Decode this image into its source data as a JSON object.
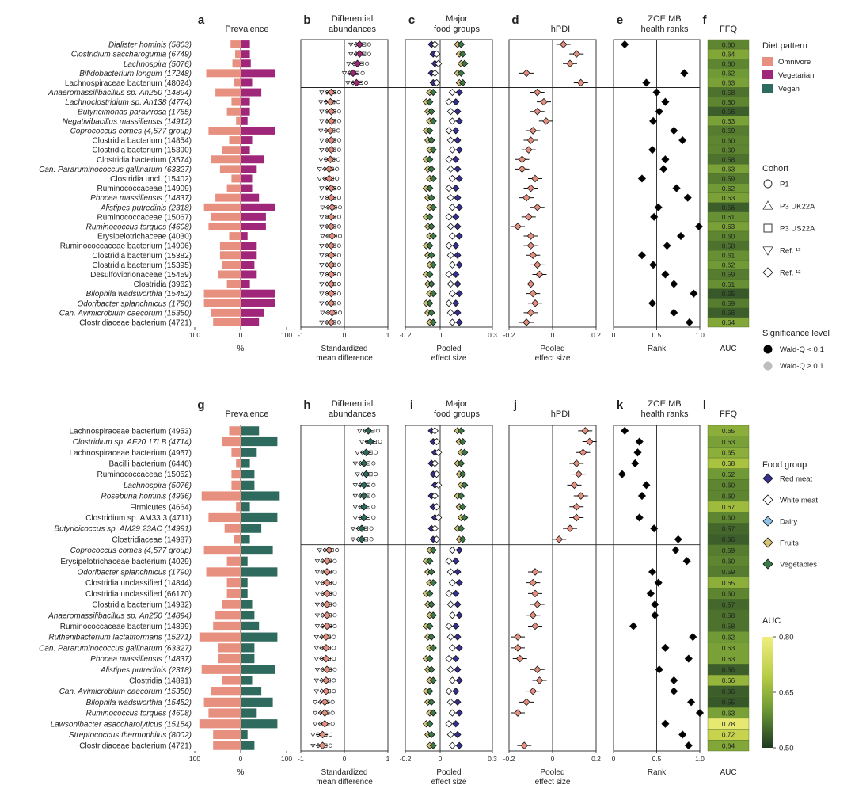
{
  "titles": {
    "a": "Prevalence",
    "b1": "Differential",
    "b2": "abundances",
    "c1": "Major",
    "c2": "food groups",
    "d": "hPDI",
    "e1": "ZOE MB",
    "e2": "health ranks",
    "f": "FFQ"
  },
  "panel_letters": {
    "top": [
      "a",
      "b",
      "c",
      "d",
      "e",
      "f"
    ],
    "bottom": [
      "g",
      "h",
      "i",
      "j",
      "k",
      "l"
    ]
  },
  "xlabels": {
    "prev": "%",
    "smd1": "Standardized",
    "smd2": "mean difference",
    "pes1": "Pooled",
    "pes2": "effect size",
    "rank": "Rank",
    "auc": "AUC"
  },
  "ticks": {
    "prev": [
      "100",
      "0",
      "100"
    ],
    "smd": [
      "-1",
      "0",
      "1"
    ],
    "fg": [
      "-0.2",
      "0",
      "0.3"
    ],
    "hpdi": [
      "-0.2",
      "0",
      "0.2"
    ],
    "rank": [
      "0",
      "0.5",
      "1.0"
    ]
  },
  "colors": {
    "omnivore": "#e8907f",
    "vegetarian": "#a0267a",
    "vegan": "#2e6b5e",
    "red_meat": "#35308e",
    "white_meat": "#ffffff",
    "dairy": "#8ec3e8",
    "fruits": "#d6c373",
    "vegetables": "#3a7a4a"
  },
  "legends": {
    "diet": {
      "title": "Diet pattern",
      "items": [
        "Omnivore",
        "Vegetarian",
        "Vegan"
      ]
    },
    "cohort": {
      "title": "Cohort",
      "items": [
        "P1",
        "P3 UK22A",
        "P3 US22A",
        "Ref. ¹³",
        "Ref. ¹²"
      ]
    },
    "sig": {
      "title": "Significance level",
      "items": [
        "Wald-Q < 0.1",
        "Wald-Q ≥ 0.1"
      ]
    },
    "food": {
      "title": "Food group",
      "items": [
        "Red meat",
        "White meat",
        "Dairy",
        "Fruits",
        "Vegetables"
      ]
    },
    "auc": {
      "title": "AUC",
      "ticks": [
        "0.80",
        "0.65",
        "0.50"
      ]
    }
  },
  "chart_data": [
    {
      "type": "bar",
      "panel": "top",
      "groups": [
        "Omnivore",
        "Vegetarian"
      ],
      "xlim": [
        -100,
        100
      ],
      "taxa": [
        {
          "label": "Dialister hominis (5803)",
          "it": true,
          "sep": false,
          "prev": [
            22,
            20
          ],
          "smd": 0.35,
          "hpdi": 0.05,
          "rank": 0.13,
          "auc": "0.60"
        },
        {
          "label": "Clostridium saccharogumia (6749)",
          "it": true,
          "sep": false,
          "prev": [
            12,
            20
          ],
          "smd": 0.35,
          "hpdi": 0.11,
          "rank": null,
          "auc": "0.64"
        },
        {
          "label": "Lachnospira (5076)",
          "it": true,
          "sep": false,
          "prev": [
            18,
            22
          ],
          "smd": 0.3,
          "hpdi": 0.08,
          "rank": null,
          "auc": "0.60"
        },
        {
          "label": "Bifidobacterium longum (17248)",
          "it": true,
          "sep": false,
          "prev": [
            75,
            75
          ],
          "smd": 0.2,
          "hpdi": -0.12,
          "rank": 0.82,
          "auc": "0.62"
        },
        {
          "label": "Lachnospiraceae bacterium (48024)",
          "it": false,
          "sep": false,
          "prev": [
            15,
            25
          ],
          "smd": 0.28,
          "hpdi": 0.13,
          "rank": 0.38,
          "auc": "0.63"
        },
        {
          "label": "Anaeromassilibacillus sp. An250 (14894)",
          "it": true,
          "sep": true,
          "prev": [
            55,
            45
          ],
          "smd": -0.3,
          "hpdi": -0.07,
          "rank": 0.5,
          "auc": "0.58"
        },
        {
          "label": "Lachnoclostridium sp. An138 (4774)",
          "it": true,
          "sep": false,
          "prev": [
            20,
            20
          ],
          "smd": -0.32,
          "hpdi": -0.04,
          "rank": 0.6,
          "auc": "0.60"
        },
        {
          "label": "Butyricimonas paravirosa (1785)",
          "it": true,
          "sep": false,
          "prev": [
            30,
            20
          ],
          "smd": -0.3,
          "hpdi": -0.07,
          "rank": 0.53,
          "auc": "0.56"
        },
        {
          "label": "Negativibacillus massiliensis (14912)",
          "it": true,
          "sep": false,
          "prev": [
            10,
            15
          ],
          "smd": -0.3,
          "hpdi": -0.03,
          "rank": 0.46,
          "auc": "0.63"
        },
        {
          "label": "Coprococcus comes (4,577 group)",
          "it": true,
          "sep": false,
          "prev": [
            70,
            75
          ],
          "smd": -0.32,
          "hpdi": -0.09,
          "rank": 0.7,
          "auc": "0.59"
        },
        {
          "label": "Clostridia bacterium (14854)",
          "it": false,
          "sep": false,
          "prev": [
            25,
            25
          ],
          "smd": -0.3,
          "hpdi": -0.1,
          "rank": 0.8,
          "auc": "0.60"
        },
        {
          "label": "Clostridia bacterium (15390)",
          "it": false,
          "sep": false,
          "prev": [
            40,
            20
          ],
          "smd": -0.3,
          "hpdi": -0.11,
          "rank": 0.45,
          "auc": "0.60"
        },
        {
          "label": "Clostridia bacterium (3574)",
          "it": false,
          "sep": false,
          "prev": [
            65,
            50
          ],
          "smd": -0.32,
          "hpdi": -0.14,
          "rank": 0.6,
          "auc": "0.58"
        },
        {
          "label": "Can. Pararuminococcus gallinarum (63327)",
          "it": true,
          "sep": false,
          "prev": [
            45,
            35
          ],
          "smd": -0.35,
          "hpdi": -0.14,
          "rank": 0.58,
          "auc": "0.63"
        },
        {
          "label": "Clostridia uncl. (15402)",
          "it": false,
          "sep": false,
          "prev": [
            20,
            25
          ],
          "smd": -0.35,
          "hpdi": -0.08,
          "rank": 0.33,
          "auc": "0.59"
        },
        {
          "label": "Ruminococcaceae (14909)",
          "it": false,
          "sep": false,
          "prev": [
            30,
            25
          ],
          "smd": -0.3,
          "hpdi": -0.1,
          "rank": 0.73,
          "auc": "0.62"
        },
        {
          "label": "Phocea massiliensis (14837)",
          "it": true,
          "sep": false,
          "prev": [
            55,
            40
          ],
          "smd": -0.3,
          "hpdi": -0.12,
          "rank": 0.86,
          "auc": "0.63"
        },
        {
          "label": "Alistipes putredinis (2318)",
          "it": true,
          "sep": false,
          "prev": [
            80,
            75
          ],
          "smd": -0.28,
          "hpdi": -0.07,
          "rank": 0.52,
          "auc": "0.56"
        },
        {
          "label": "Ruminococcaceae (15067)",
          "it": false,
          "sep": false,
          "prev": [
            65,
            55
          ],
          "smd": -0.3,
          "hpdi": -0.11,
          "rank": 0.47,
          "auc": "0.61"
        },
        {
          "label": "Ruminococcus torques (4608)",
          "it": true,
          "sep": false,
          "prev": [
            70,
            55
          ],
          "smd": -0.3,
          "hpdi": -0.16,
          "rank": 0.99,
          "auc": "0.63"
        },
        {
          "label": "Erysipelotrichaceae (4030)",
          "it": false,
          "sep": false,
          "prev": [
            25,
            15
          ],
          "smd": -0.28,
          "hpdi": -0.1,
          "rank": 0.78,
          "auc": "0.60"
        },
        {
          "label": "Ruminococcaceae bacterium (14906)",
          "it": false,
          "sep": false,
          "prev": [
            45,
            35
          ],
          "smd": -0.3,
          "hpdi": -0.1,
          "rank": 0.62,
          "auc": "0.58"
        },
        {
          "label": "Clostridia bacterium (15382)",
          "it": false,
          "sep": false,
          "prev": [
            45,
            35
          ],
          "smd": -0.3,
          "hpdi": -0.09,
          "rank": 0.33,
          "auc": "0.61"
        },
        {
          "label": "Clostridia bacterium (15395)",
          "it": false,
          "sep": false,
          "prev": [
            40,
            30
          ],
          "smd": -0.3,
          "hpdi": -0.07,
          "rank": 0.46,
          "auc": "0.62"
        },
        {
          "label": "Desulfovibrionaceae (15459)",
          "it": false,
          "sep": false,
          "prev": [
            50,
            35
          ],
          "smd": -0.3,
          "hpdi": -0.06,
          "rank": 0.6,
          "auc": "0.59"
        },
        {
          "label": "Clostridia (3962)",
          "it": false,
          "sep": false,
          "prev": [
            30,
            20
          ],
          "smd": -0.3,
          "hpdi": -0.1,
          "rank": 0.7,
          "auc": "0.61"
        },
        {
          "label": "Bilophila wadsworthia (15452)",
          "it": true,
          "sep": false,
          "prev": [
            80,
            75
          ],
          "smd": -0.3,
          "hpdi": -0.09,
          "rank": 0.93,
          "auc": "0.55"
        },
        {
          "label": "Odoribacter splanchnicus (1790)",
          "it": true,
          "sep": false,
          "prev": [
            80,
            75
          ],
          "smd": -0.3,
          "hpdi": -0.08,
          "rank": 0.45,
          "auc": "0.59"
        },
        {
          "label": "Can. Avimicrobium caecorum (15350)",
          "it": true,
          "sep": false,
          "prev": [
            65,
            50
          ],
          "smd": -0.28,
          "hpdi": -0.1,
          "rank": 0.7,
          "auc": "0.56"
        },
        {
          "label": "Clostridiaceae bacterium (4721)",
          "it": false,
          "sep": false,
          "prev": [
            60,
            40
          ],
          "smd": -0.3,
          "hpdi": -0.12,
          "rank": 0.88,
          "auc": "0.64"
        }
      ]
    },
    {
      "type": "bar",
      "panel": "bottom",
      "groups": [
        "Omnivore",
        "Vegan"
      ],
      "xlim": [
        -100,
        100
      ],
      "taxa": [
        {
          "label": "Lachnospiraceae bacterium (4953)",
          "it": false,
          "sep": false,
          "prev": [
            25,
            40
          ],
          "smd": 0.55,
          "hpdi": 0.15,
          "rank": 0.13,
          "auc": "0.65"
        },
        {
          "label": "Clostridium sp. AF20 17LB (4714)",
          "it": true,
          "sep": false,
          "prev": [
            40,
            80
          ],
          "smd": 0.6,
          "hpdi": 0.17,
          "rank": 0.3,
          "auc": "0.63"
        },
        {
          "label": "Lachnospiraceae bacterium (4957)",
          "it": false,
          "sep": false,
          "prev": [
            20,
            35
          ],
          "smd": 0.5,
          "hpdi": 0.14,
          "rank": 0.28,
          "auc": "0.65"
        },
        {
          "label": "Bacilli bacterium (6440)",
          "it": false,
          "sep": false,
          "prev": [
            10,
            20
          ],
          "smd": 0.45,
          "hpdi": 0.11,
          "rank": 0.25,
          "auc": "0.68"
        },
        {
          "label": "Ruminococcaceae (15052)",
          "it": false,
          "sep": false,
          "prev": [
            20,
            30
          ],
          "smd": 0.5,
          "hpdi": 0.12,
          "rank": 0.1,
          "auc": "0.62"
        },
        {
          "label": "Lachnospira (5076)",
          "it": true,
          "sep": false,
          "prev": [
            20,
            30
          ],
          "smd": 0.45,
          "hpdi": 0.1,
          "rank": 0.38,
          "auc": "0.60"
        },
        {
          "label": "Roseburia hominis (4936)",
          "it": true,
          "sep": false,
          "prev": [
            85,
            85
          ],
          "smd": 0.45,
          "hpdi": 0.13,
          "rank": 0.33,
          "auc": "0.60"
        },
        {
          "label": "Firmicutes (4664)",
          "it": false,
          "sep": false,
          "prev": [
            10,
            20
          ],
          "smd": 0.45,
          "hpdi": 0.11,
          "rank": null,
          "auc": "0.67"
        },
        {
          "label": "Clostridium sp. AM33 3 (4711)",
          "it": false,
          "sep": false,
          "prev": [
            70,
            80
          ],
          "smd": 0.45,
          "hpdi": 0.11,
          "rank": 0.3,
          "auc": "0.60"
        },
        {
          "label": "Butyricicoccus sp. AM29 23AC (14991)",
          "it": true,
          "sep": false,
          "prev": [
            35,
            45
          ],
          "smd": 0.4,
          "hpdi": 0.08,
          "rank": 0.47,
          "auc": "0.57"
        },
        {
          "label": "Clostridiaceae (14987)",
          "it": false,
          "sep": false,
          "prev": [
            15,
            20
          ],
          "smd": 0.4,
          "hpdi": 0.03,
          "rank": 0.75,
          "auc": "0.56"
        },
        {
          "label": "Coprococcus comes (4,577 group)",
          "it": true,
          "sep": true,
          "prev": [
            80,
            70
          ],
          "smd": -0.35,
          "hpdi": null,
          "rank": 0.72,
          "auc": "0.59"
        },
        {
          "label": "Erysipelotrichaceae bacterium (4029)",
          "it": false,
          "sep": false,
          "prev": [
            30,
            15
          ],
          "smd": -0.4,
          "hpdi": null,
          "rank": 0.85,
          "auc": "0.60"
        },
        {
          "label": "Odoribacter splanchnicus (1790)",
          "it": true,
          "sep": false,
          "prev": [
            75,
            80
          ],
          "smd": -0.4,
          "hpdi": -0.08,
          "rank": 0.45,
          "auc": "0.59"
        },
        {
          "label": "Clostridia unclassified (14844)",
          "it": false,
          "sep": false,
          "prev": [
            30,
            15
          ],
          "smd": -0.4,
          "hpdi": -0.09,
          "rank": 0.52,
          "auc": "0.65"
        },
        {
          "label": "Clostridia unclassified (66170)",
          "it": false,
          "sep": false,
          "prev": [
            30,
            15
          ],
          "smd": -0.4,
          "hpdi": -0.08,
          "rank": 0.43,
          "auc": "0.60"
        },
        {
          "label": "Clostridia bacterium (14932)",
          "it": false,
          "sep": false,
          "prev": [
            40,
            25
          ],
          "smd": -0.4,
          "hpdi": -0.07,
          "rank": 0.48,
          "auc": "0.57"
        },
        {
          "label": "Anaeromassilibacillus sp. An250 (14894)",
          "it": true,
          "sep": false,
          "prev": [
            55,
            30
          ],
          "smd": -0.4,
          "hpdi": -0.09,
          "rank": 0.48,
          "auc": "0.58"
        },
        {
          "label": "Ruminococcaceae bacterium (14899)",
          "it": false,
          "sep": false,
          "prev": [
            60,
            40
          ],
          "smd": -0.4,
          "hpdi": -0.08,
          "rank": 0.23,
          "auc": "0.58"
        },
        {
          "label": "Ruthenibacterium lactatiformans (15271)",
          "it": true,
          "sep": false,
          "prev": [
            90,
            80
          ],
          "smd": -0.42,
          "hpdi": -0.16,
          "rank": 0.92,
          "auc": "0.62"
        },
        {
          "label": "Can. Pararuminococcus gallinarum (63327)",
          "it": true,
          "sep": false,
          "prev": [
            50,
            30
          ],
          "smd": -0.42,
          "hpdi": -0.16,
          "rank": 0.6,
          "auc": "0.63"
        },
        {
          "label": "Phocea massiliensis (14837)",
          "it": true,
          "sep": false,
          "prev": [
            50,
            30
          ],
          "smd": -0.42,
          "hpdi": -0.15,
          "rank": 0.87,
          "auc": "0.63"
        },
        {
          "label": "Alistipes putredinis (2318)",
          "it": true,
          "sep": false,
          "prev": [
            85,
            75
          ],
          "smd": -0.4,
          "hpdi": -0.07,
          "rank": 0.53,
          "auc": "0.56"
        },
        {
          "label": "Clostridia (14891)",
          "it": false,
          "sep": false,
          "prev": [
            40,
            25
          ],
          "smd": -0.42,
          "hpdi": -0.06,
          "rank": 0.7,
          "auc": "0.66"
        },
        {
          "label": "Can. Avimicrobium caecorum (15350)",
          "it": true,
          "sep": false,
          "prev": [
            65,
            45
          ],
          "smd": -0.42,
          "hpdi": -0.09,
          "rank": 0.7,
          "auc": "0.56"
        },
        {
          "label": "Bilophila wadsworthia (15452)",
          "it": true,
          "sep": false,
          "prev": [
            80,
            70
          ],
          "smd": -0.45,
          "hpdi": -0.12,
          "rank": 0.9,
          "auc": "0.55"
        },
        {
          "label": "Ruminococcus torques (4608)",
          "it": true,
          "sep": false,
          "prev": [
            70,
            35
          ],
          "smd": -0.45,
          "hpdi": -0.16,
          "rank": 1.0,
          "auc": "0.63"
        },
        {
          "label": "Lawsonibacter asaccharolyticus (15154)",
          "it": true,
          "sep": false,
          "prev": [
            90,
            80
          ],
          "smd": -0.45,
          "hpdi": null,
          "rank": 0.6,
          "auc": "0.78"
        },
        {
          "label": "Streptococcus thermophilus (8002)",
          "it": true,
          "sep": false,
          "prev": [
            60,
            15
          ],
          "smd": -0.5,
          "hpdi": null,
          "rank": 0.8,
          "auc": "0.72"
        },
        {
          "label": "Clostridiaceae bacterium (4721)",
          "it": false,
          "sep": false,
          "prev": [
            60,
            30
          ],
          "smd": -0.5,
          "hpdi": -0.13,
          "rank": 0.87,
          "auc": "0.64"
        }
      ]
    }
  ]
}
